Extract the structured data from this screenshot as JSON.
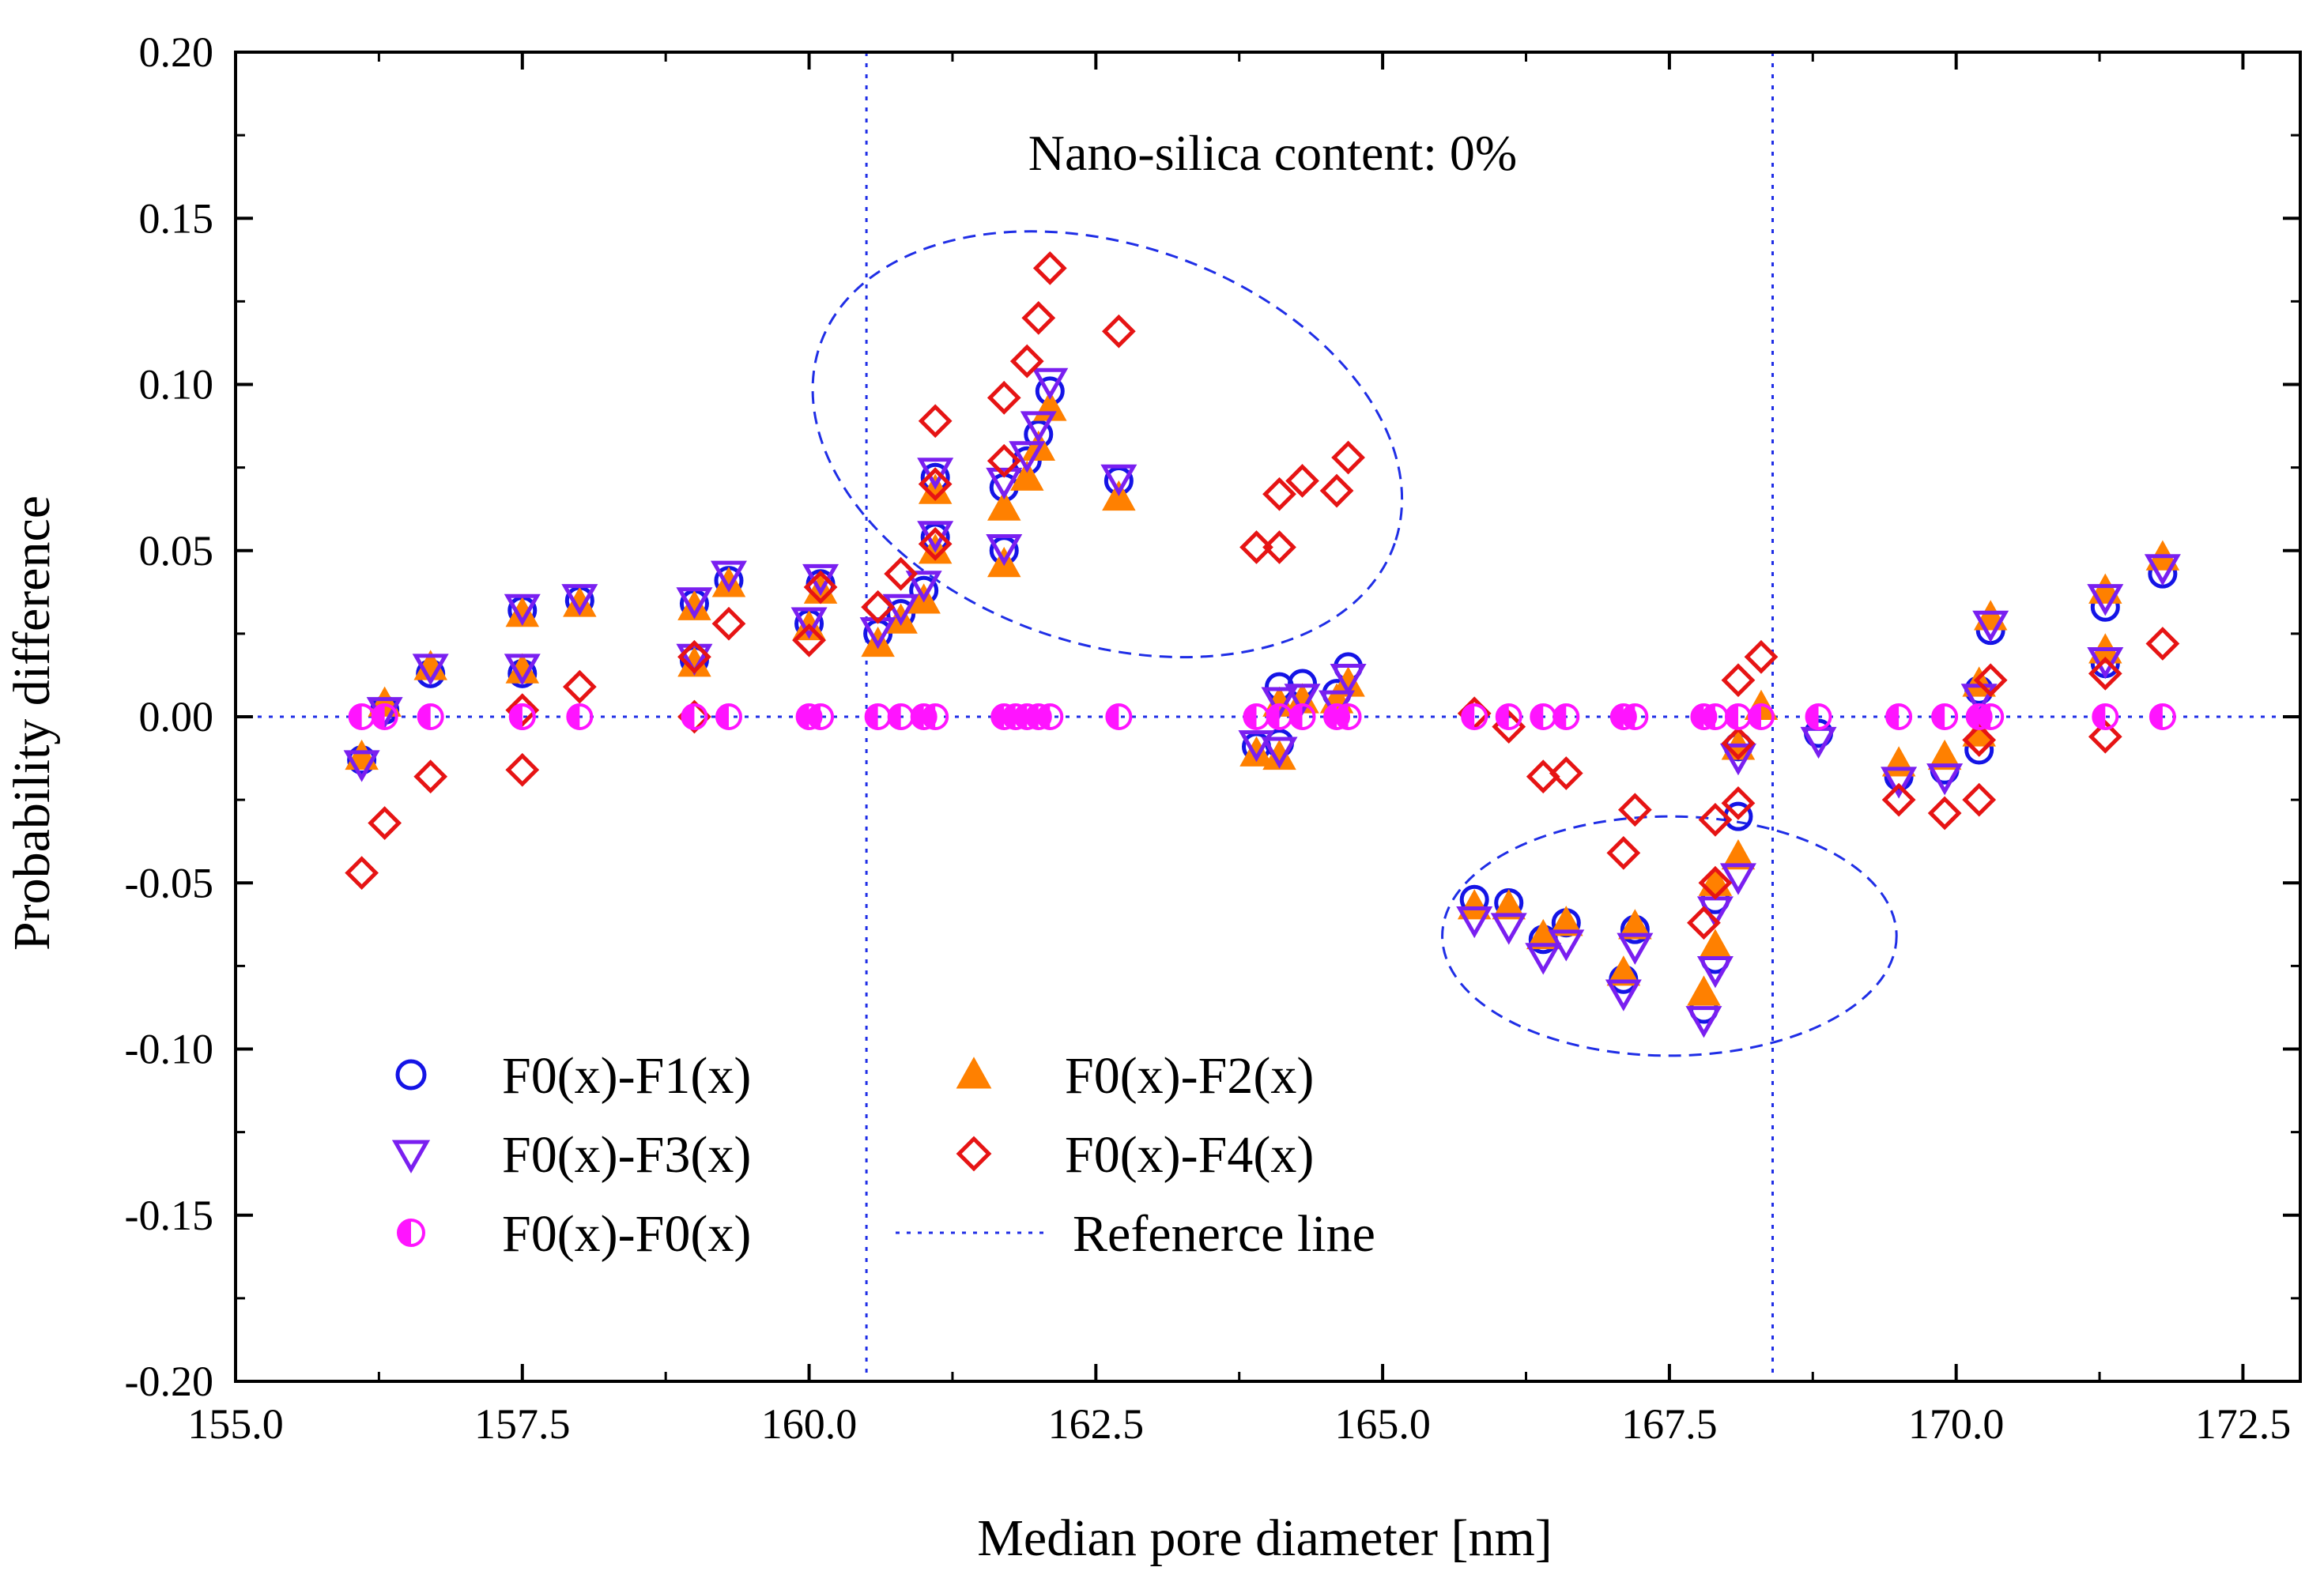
{
  "chart_data": {
    "type": "scatter",
    "title": "",
    "xlabel": "Median pore diameter [nm]",
    "ylabel": "Probability difference",
    "xlim": [
      155.0,
      173.0
    ],
    "ylim": [
      -0.2,
      0.2
    ],
    "xticks": [
      155.0,
      157.5,
      160.0,
      162.5,
      165.0,
      167.5,
      170.0,
      172.5
    ],
    "xtick_labels": [
      "155.0",
      "157.5",
      "160.0",
      "162.5",
      "165.0",
      "167.5",
      "170.0",
      "172.5"
    ],
    "yticks": [
      0.2,
      0.15,
      0.1,
      0.05,
      0.0,
      -0.05,
      -0.1,
      -0.15,
      -0.2
    ],
    "ytick_labels": [
      "0.20",
      "0.15",
      "0.10",
      "0.05",
      "0.00",
      "-0.05",
      "-0.10",
      "-0.15",
      "-0.20"
    ],
    "grid": false,
    "legend_position": "bottom-left",
    "annotation": "Nano-silica content: 0%",
    "reference_lines": {
      "label": "Refenerce line",
      "color": "#1f2ee6",
      "vertical_x": [
        160.5,
        168.4
      ],
      "horizontal_y": 0.0
    },
    "highlight_ellipses": [
      {
        "name": "upper-cluster-ellipse",
        "center_x": 162.6,
        "center_y": 0.082,
        "radius_x": 2.65,
        "radius_y": 0.06,
        "rotation_deg": 19
      },
      {
        "name": "lower-cluster-ellipse",
        "center_x": 167.5,
        "center_y": -0.066,
        "radius_x": 1.98,
        "radius_y": 0.036,
        "rotation_deg": 0
      }
    ],
    "series": [
      {
        "name": "F0(x)-F1(x)",
        "marker": "circle-open",
        "color": "#1414e6",
        "points": [
          [
            156.1,
            -0.013
          ],
          [
            156.3,
            0.002
          ],
          [
            156.7,
            0.013
          ],
          [
            157.5,
            0.013
          ],
          [
            157.5,
            0.032
          ],
          [
            158.0,
            0.035
          ],
          [
            159.0,
            0.017
          ],
          [
            159.0,
            0.034
          ],
          [
            159.3,
            0.041
          ],
          [
            160.0,
            0.028
          ],
          [
            160.1,
            0.04
          ],
          [
            160.6,
            0.025
          ],
          [
            160.8,
            0.031
          ],
          [
            161.0,
            0.038
          ],
          [
            161.1,
            0.054
          ],
          [
            161.1,
            0.072
          ],
          [
            161.7,
            0.05
          ],
          [
            161.7,
            0.069
          ],
          [
            161.9,
            0.077
          ],
          [
            162.0,
            0.085
          ],
          [
            162.1,
            0.098
          ],
          [
            162.7,
            0.071
          ],
          [
            163.9,
            -0.009
          ],
          [
            164.1,
            -0.008
          ],
          [
            164.1,
            0.009
          ],
          [
            164.3,
            0.01
          ],
          [
            164.6,
            0.007
          ],
          [
            164.7,
            0.015
          ],
          [
            165.8,
            -0.055
          ],
          [
            166.1,
            -0.056
          ],
          [
            166.4,
            -0.067
          ],
          [
            166.6,
            -0.062
          ],
          [
            167.1,
            -0.079
          ],
          [
            167.2,
            -0.064
          ],
          [
            167.8,
            -0.088
          ],
          [
            167.9,
            -0.073
          ],
          [
            167.9,
            -0.055
          ],
          [
            168.1,
            -0.03
          ],
          [
            168.1,
            -0.009
          ],
          [
            168.8,
            -0.005
          ],
          [
            169.5,
            -0.018
          ],
          [
            169.9,
            -0.016
          ],
          [
            170.2,
            -0.01
          ],
          [
            170.2,
            0.008
          ],
          [
            170.3,
            0.026
          ],
          [
            171.3,
            0.016
          ],
          [
            171.3,
            0.033
          ],
          [
            171.8,
            0.043
          ]
        ]
      },
      {
        "name": "F0(x)-F2(x)",
        "marker": "triangle-up-filled",
        "color": "#ff8000",
        "points": [
          [
            156.1,
            -0.012
          ],
          [
            156.3,
            0.004
          ],
          [
            156.7,
            0.015
          ],
          [
            157.5,
            0.014
          ],
          [
            157.5,
            0.031
          ],
          [
            158.0,
            0.034
          ],
          [
            159.0,
            0.016
          ],
          [
            159.0,
            0.033
          ],
          [
            159.3,
            0.04
          ],
          [
            160.0,
            0.027
          ],
          [
            160.1,
            0.038
          ],
          [
            160.6,
            0.022
          ],
          [
            160.8,
            0.029
          ],
          [
            161.0,
            0.035
          ],
          [
            161.1,
            0.05
          ],
          [
            161.1,
            0.068
          ],
          [
            161.7,
            0.046
          ],
          [
            161.7,
            0.063
          ],
          [
            161.9,
            0.072
          ],
          [
            162.0,
            0.081
          ],
          [
            162.1,
            0.093
          ],
          [
            162.7,
            0.066
          ],
          [
            163.9,
            -0.011
          ],
          [
            164.1,
            -0.012
          ],
          [
            164.1,
            0.004
          ],
          [
            164.3,
            0.005
          ],
          [
            164.6,
            0.005
          ],
          [
            164.7,
            0.01
          ],
          [
            165.8,
            -0.057
          ],
          [
            166.1,
            -0.057
          ],
          [
            166.4,
            -0.066
          ],
          [
            166.6,
            -0.062
          ],
          [
            167.1,
            -0.077
          ],
          [
            167.2,
            -0.063
          ],
          [
            167.8,
            -0.083
          ],
          [
            167.9,
            -0.069
          ],
          [
            167.9,
            -0.05
          ],
          [
            168.1,
            -0.042
          ],
          [
            168.1,
            -0.009
          ],
          [
            168.3,
            0.003
          ],
          [
            169.5,
            -0.014
          ],
          [
            169.9,
            -0.012
          ],
          [
            170.2,
            -0.005
          ],
          [
            170.2,
            0.01
          ],
          [
            170.3,
            0.03
          ],
          [
            171.3,
            0.02
          ],
          [
            171.3,
            0.038
          ],
          [
            171.8,
            0.048
          ]
        ]
      },
      {
        "name": "F0(x)-F3(x)",
        "marker": "triangle-down-open",
        "color": "#7a1ff0",
        "points": [
          [
            156.1,
            -0.014
          ],
          [
            156.3,
            0.002
          ],
          [
            156.7,
            0.015
          ],
          [
            157.5,
            0.015
          ],
          [
            157.5,
            0.033
          ],
          [
            158.0,
            0.036
          ],
          [
            159.0,
            0.018
          ],
          [
            159.0,
            0.035
          ],
          [
            159.3,
            0.043
          ],
          [
            160.0,
            0.029
          ],
          [
            160.1,
            0.042
          ],
          [
            160.6,
            0.026
          ],
          [
            160.8,
            0.033
          ],
          [
            161.0,
            0.04
          ],
          [
            161.1,
            0.055
          ],
          [
            161.1,
            0.074
          ],
          [
            161.7,
            0.051
          ],
          [
            161.7,
            0.071
          ],
          [
            161.9,
            0.079
          ],
          [
            162.0,
            0.088
          ],
          [
            162.1,
            0.101
          ],
          [
            162.7,
            0.072
          ],
          [
            163.9,
            -0.008
          ],
          [
            164.1,
            -0.01
          ],
          [
            164.1,
            0.005
          ],
          [
            164.3,
            0.006
          ],
          [
            164.6,
            0.004
          ],
          [
            164.7,
            0.012
          ],
          [
            165.8,
            -0.061
          ],
          [
            166.1,
            -0.063
          ],
          [
            166.4,
            -0.072
          ],
          [
            166.6,
            -0.068
          ],
          [
            167.1,
            -0.083
          ],
          [
            167.2,
            -0.069
          ],
          [
            167.8,
            -0.091
          ],
          [
            167.9,
            -0.076
          ],
          [
            167.9,
            -0.058
          ],
          [
            168.1,
            -0.048
          ],
          [
            168.1,
            -0.012
          ],
          [
            168.8,
            -0.007
          ],
          [
            169.5,
            -0.019
          ],
          [
            169.9,
            -0.018
          ],
          [
            170.2,
            0.006
          ],
          [
            170.3,
            0.028
          ],
          [
            171.3,
            0.017
          ],
          [
            171.3,
            0.036
          ],
          [
            171.8,
            0.045
          ]
        ]
      },
      {
        "name": "F0(x)-F4(x)",
        "marker": "diamond-open",
        "color": "#e61414",
        "points": [
          [
            156.1,
            -0.047
          ],
          [
            156.3,
            -0.032
          ],
          [
            156.7,
            -0.018
          ],
          [
            157.5,
            -0.016
          ],
          [
            157.5,
            0.002
          ],
          [
            158.0,
            0.009
          ],
          [
            159.0,
            0.0
          ],
          [
            159.0,
            0.018
          ],
          [
            159.3,
            0.028
          ],
          [
            160.0,
            0.023
          ],
          [
            160.1,
            0.039
          ],
          [
            160.6,
            0.033
          ],
          [
            160.8,
            0.043
          ],
          [
            161.1,
            0.052
          ],
          [
            161.1,
            0.07
          ],
          [
            161.1,
            0.089
          ],
          [
            161.7,
            0.077
          ],
          [
            161.7,
            0.096
          ],
          [
            161.9,
            0.107
          ],
          [
            162.0,
            0.12
          ],
          [
            162.1,
            0.135
          ],
          [
            162.7,
            0.116
          ],
          [
            163.9,
            0.051
          ],
          [
            164.1,
            0.051
          ],
          [
            164.1,
            0.067
          ],
          [
            164.3,
            0.071
          ],
          [
            164.6,
            0.068
          ],
          [
            164.7,
            0.078
          ],
          [
            165.8,
            0.001
          ],
          [
            166.1,
            -0.003
          ],
          [
            166.4,
            -0.018
          ],
          [
            166.6,
            -0.017
          ],
          [
            167.1,
            -0.041
          ],
          [
            167.2,
            -0.028
          ],
          [
            167.8,
            -0.062
          ],
          [
            167.9,
            -0.05
          ],
          [
            167.9,
            -0.031
          ],
          [
            168.1,
            -0.026
          ],
          [
            168.1,
            -0.008
          ],
          [
            168.1,
            0.011
          ],
          [
            168.3,
            0.018
          ],
          [
            169.5,
            -0.025
          ],
          [
            169.9,
            -0.029
          ],
          [
            170.2,
            -0.025
          ],
          [
            170.2,
            -0.007
          ],
          [
            170.3,
            0.011
          ],
          [
            171.3,
            -0.006
          ],
          [
            171.3,
            0.013
          ],
          [
            171.8,
            0.022
          ]
        ]
      },
      {
        "name": "F0(x)-F0(x)",
        "marker": "circle-half-filled",
        "color": "#ff14ff",
        "points": [
          [
            156.1,
            0.0
          ],
          [
            156.3,
            0.0
          ],
          [
            156.7,
            0.0
          ],
          [
            157.5,
            0.0
          ],
          [
            157.5,
            0.0
          ],
          [
            158.0,
            0.0
          ],
          [
            159.0,
            0.0
          ],
          [
            159.3,
            0.0
          ],
          [
            160.0,
            0.0
          ],
          [
            160.1,
            0.0
          ],
          [
            160.6,
            0.0
          ],
          [
            160.8,
            0.0
          ],
          [
            161.0,
            0.0
          ],
          [
            161.1,
            0.0
          ],
          [
            161.7,
            0.0
          ],
          [
            161.8,
            0.0
          ],
          [
            161.9,
            0.0
          ],
          [
            162.0,
            0.0
          ],
          [
            162.1,
            0.0
          ],
          [
            162.7,
            0.0
          ],
          [
            163.9,
            0.0
          ],
          [
            164.1,
            0.0
          ],
          [
            164.3,
            0.0
          ],
          [
            164.6,
            0.0
          ],
          [
            164.7,
            0.0
          ],
          [
            165.8,
            0.0
          ],
          [
            166.1,
            0.0
          ],
          [
            166.4,
            0.0
          ],
          [
            166.6,
            0.0
          ],
          [
            167.1,
            0.0
          ],
          [
            167.2,
            0.0
          ],
          [
            167.8,
            0.0
          ],
          [
            167.9,
            0.0
          ],
          [
            168.1,
            0.0
          ],
          [
            168.3,
            0.0
          ],
          [
            168.8,
            0.0
          ],
          [
            169.5,
            0.0
          ],
          [
            169.9,
            0.0
          ],
          [
            170.2,
            0.0
          ],
          [
            170.3,
            0.0
          ],
          [
            171.3,
            0.0
          ],
          [
            171.8,
            0.0
          ]
        ]
      }
    ],
    "legend": [
      {
        "label": "F0(x)-F1(x)",
        "marker": "circle-open",
        "color": "#1414e6"
      },
      {
        "label": "F0(x)-F2(x)",
        "marker": "triangle-up-filled",
        "color": "#ff8000"
      },
      {
        "label": "F0(x)-F3(x)",
        "marker": "triangle-down-open",
        "color": "#7a1ff0"
      },
      {
        "label": "F0(x)-F4(x)",
        "marker": "diamond-open",
        "color": "#e61414"
      },
      {
        "label": "F0(x)-F0(x)",
        "marker": "circle-half-filled",
        "color": "#ff14ff"
      },
      {
        "label": "Refenerce line",
        "marker": "dotted-line",
        "color": "#1f2ee6"
      }
    ]
  }
}
